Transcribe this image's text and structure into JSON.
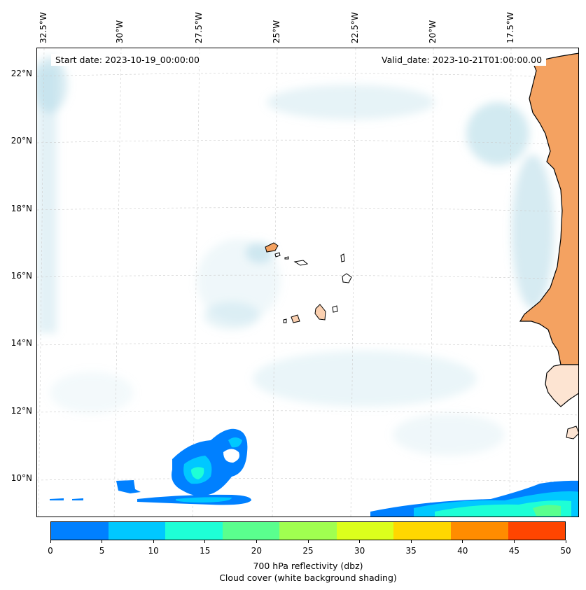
{
  "header": {
    "start_date": "Start date: 2023-10-19_00:00:00",
    "valid_date": "Valid_date: 2023-10-21T01:00:00.00"
  },
  "lon_labels": [
    "32.5°W",
    "30°W",
    "27.5°W",
    "25°W",
    "22.5°W",
    "20°W",
    "17.5°W"
  ],
  "lat_labels": [
    "22°N",
    "20°N",
    "18°N",
    "16°N",
    "14°N",
    "12°N",
    "10°N"
  ],
  "colorbar": {
    "ticks": [
      "0",
      "5",
      "10",
      "15",
      "20",
      "25",
      "30",
      "35",
      "40",
      "45",
      "50"
    ],
    "colors": [
      "#0080ff",
      "#00c8ff",
      "#1effd6",
      "#5aff8e",
      "#a0ff50",
      "#dcff1c",
      "#ffd700",
      "#ff8c00",
      "#ff4500",
      "#ff4500"
    ],
    "label_line1": "700 hPa reflectivity (dbz)",
    "label_line2": "Cloud cover (white background shading)"
  },
  "land_color": "#f4a261",
  "island_color": "#fbd0b0",
  "cloud_color": "#add8e6"
}
